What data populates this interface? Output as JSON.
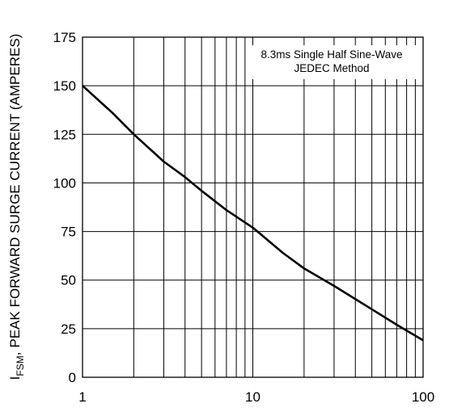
{
  "chart_data": {
    "type": "line",
    "title": "",
    "xlabel": "",
    "ylabel": "PEAK FORWARD SURGE CURRENT (AMPERES)",
    "ylabel_symbol": "I",
    "ylabel_subscript": "FSM",
    "ylabel_suffix": ",",
    "x_scale": "log",
    "xlim": [
      1,
      100
    ],
    "ylim": [
      0,
      175
    ],
    "x_tick_labels": [
      "1",
      "10",
      "100"
    ],
    "y_tick_labels": [
      "0",
      "25",
      "50",
      "75",
      "100",
      "125",
      "150",
      "175"
    ],
    "grid": true,
    "annotation": [
      "8.3ms Single Half Sine-Wave",
      "JEDEC Method"
    ],
    "series": [
      {
        "x": [
          1,
          1.5,
          2,
          3,
          4,
          5,
          7,
          10,
          15,
          20,
          30,
          50,
          70,
          100
        ],
        "y": [
          150,
          136,
          125,
          111,
          103,
          96,
          86,
          77,
          64,
          56,
          47,
          35,
          27,
          19
        ]
      }
    ]
  }
}
